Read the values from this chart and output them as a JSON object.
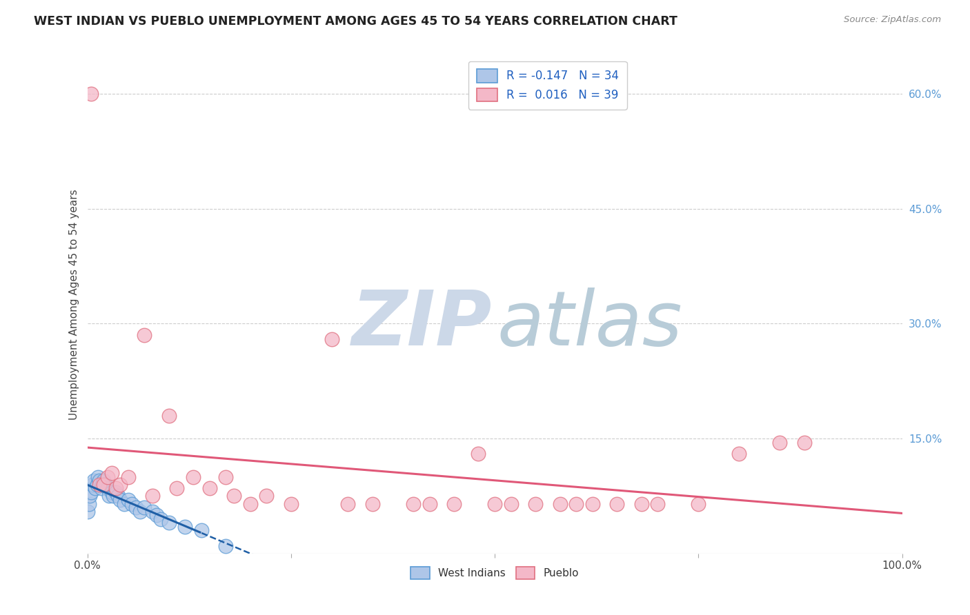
{
  "title": "WEST INDIAN VS PUEBLO UNEMPLOYMENT AMONG AGES 45 TO 54 YEARS CORRELATION CHART",
  "source": "Source: ZipAtlas.com",
  "ylabel": "Unemployment Among Ages 45 to 54 years",
  "xlim": [
    0,
    1.0
  ],
  "ylim": [
    0,
    0.65
  ],
  "xtick_vals": [
    0.0,
    0.25,
    0.5,
    0.75,
    1.0
  ],
  "xtick_labels": [
    "0.0%",
    "",
    "",
    "",
    "100.0%"
  ],
  "ytick_values": [
    0.15,
    0.3,
    0.45,
    0.6
  ],
  "ytick_labels": [
    "15.0%",
    "30.0%",
    "45.0%",
    "60.0%"
  ],
  "west_indian_color_face": "#aec6e8",
  "west_indian_color_edge": "#5b9bd5",
  "pueblo_color_face": "#f4b8c8",
  "pueblo_color_edge": "#e07080",
  "west_indian_x": [
    0.0,
    0.002,
    0.003,
    0.005,
    0.006,
    0.008,
    0.01,
    0.012,
    0.013,
    0.015,
    0.017,
    0.018,
    0.02,
    0.022,
    0.025,
    0.027,
    0.03,
    0.032,
    0.035,
    0.038,
    0.04,
    0.045,
    0.05,
    0.055,
    0.06,
    0.065,
    0.07,
    0.08,
    0.085,
    0.09,
    0.1,
    0.12,
    0.14,
    0.17
  ],
  "west_indian_y": [
    0.055,
    0.065,
    0.075,
    0.08,
    0.09,
    0.095,
    0.085,
    0.09,
    0.1,
    0.095,
    0.085,
    0.09,
    0.095,
    0.09,
    0.085,
    0.075,
    0.08,
    0.075,
    0.08,
    0.075,
    0.07,
    0.065,
    0.07,
    0.065,
    0.06,
    0.055,
    0.06,
    0.055,
    0.05,
    0.045,
    0.04,
    0.035,
    0.03,
    0.01
  ],
  "pueblo_x": [
    0.005,
    0.015,
    0.02,
    0.025,
    0.03,
    0.035,
    0.04,
    0.05,
    0.07,
    0.08,
    0.1,
    0.11,
    0.13,
    0.15,
    0.17,
    0.18,
    0.2,
    0.22,
    0.25,
    0.3,
    0.32,
    0.35,
    0.4,
    0.42,
    0.45,
    0.48,
    0.5,
    0.52,
    0.55,
    0.58,
    0.6,
    0.62,
    0.65,
    0.68,
    0.7,
    0.75,
    0.8,
    0.85,
    0.88
  ],
  "pueblo_y": [
    0.6,
    0.09,
    0.09,
    0.1,
    0.105,
    0.085,
    0.09,
    0.1,
    0.285,
    0.075,
    0.18,
    0.085,
    0.1,
    0.085,
    0.1,
    0.075,
    0.065,
    0.075,
    0.065,
    0.28,
    0.065,
    0.065,
    0.065,
    0.065,
    0.065,
    0.13,
    0.065,
    0.065,
    0.065,
    0.065,
    0.065,
    0.065,
    0.065,
    0.065,
    0.065,
    0.065,
    0.13,
    0.145,
    0.145
  ],
  "west_indian_solid_xend": 0.14,
  "pueblo_trend_y_intercept": 0.105,
  "pueblo_trend_slope": 0.001,
  "blue_trend_color": "#1f5fa6",
  "pink_trend_color": "#e05878",
  "background_color": "#ffffff",
  "grid_color": "#cccccc",
  "watermark_zip_color": "#ccd8e8",
  "watermark_atlas_color": "#b8ccd8"
}
